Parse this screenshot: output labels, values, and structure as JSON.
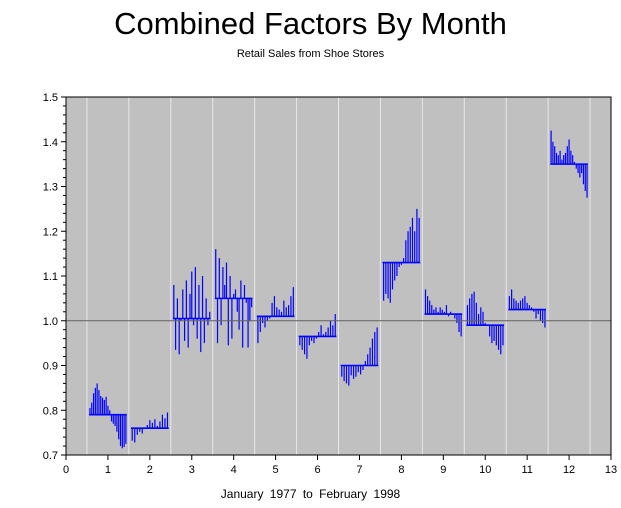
{
  "chart_data": {
    "type": "bar",
    "title": "Combined Factors By Month",
    "subtitle": "Retail Sales from Shoe Stores",
    "xlabel": "January 1977  to  February 1998",
    "ylabel": "",
    "xlim": [
      0,
      13
    ],
    "ylim": [
      0.7,
      1.5
    ],
    "x_ticks": [
      "0",
      "1",
      "2",
      "3",
      "4",
      "5",
      "6",
      "7",
      "8",
      "9",
      "10",
      "11",
      "12",
      "13"
    ],
    "y_ticks": [
      "0.7",
      "0.8",
      "0.9",
      "1.0",
      "1.1",
      "1.2",
      "1.3",
      "1.4",
      "1.5"
    ],
    "reference_line": 1.0,
    "grid": "vertical",
    "colors": {
      "plot_background": "#c0c0c0",
      "bars": "#0000ff",
      "grid": "#e8e8e8",
      "reference": "#606060"
    },
    "series": [
      {
        "month": 1,
        "mean": 0.79,
        "values": [
          0.805,
          0.817,
          0.838,
          0.85,
          0.86,
          0.845,
          0.832,
          0.828,
          0.823,
          0.83,
          0.81,
          0.8,
          0.775,
          0.77,
          0.765,
          0.752,
          0.735,
          0.72,
          0.715,
          0.718,
          0.725
        ]
      },
      {
        "month": 2,
        "mean": 0.76,
        "values": [
          0.732,
          0.728,
          0.745,
          0.752,
          0.748,
          0.76,
          0.767,
          0.778,
          0.772,
          0.78,
          0.765,
          0.775,
          0.79,
          0.782,
          0.795
        ]
      },
      {
        "month": 3,
        "mean": 1.005,
        "values": [
          1.08,
          0.935,
          1.05,
          0.925,
          1.0,
          1.07,
          0.955,
          1.09,
          0.94,
          1.06,
          1.11,
          0.99,
          1.12,
          0.96,
          1.08,
          0.93,
          1.1,
          0.95,
          1.05,
          0.99,
          1.02
        ]
      },
      {
        "month": 4,
        "mean": 1.05,
        "values": [
          1.16,
          0.95,
          1.14,
          0.99,
          1.12,
          1.08,
          1.13,
          0.945,
          1.1,
          0.96,
          1.06,
          1.07,
          1.02,
          0.98,
          1.09,
          0.94,
          1.08,
          1.04,
          0.94,
          1.0,
          1.03
        ]
      },
      {
        "month": 5,
        "mean": 1.01,
        "values": [
          0.95,
          0.975,
          0.995,
          0.985,
          1.0,
          1.005,
          1.04,
          1.055,
          1.03,
          1.025,
          1.02,
          1.045,
          1.03,
          1.035,
          1.055,
          1.075
        ]
      },
      {
        "month": 6,
        "mean": 0.965,
        "values": [
          0.945,
          0.935,
          0.925,
          0.915,
          0.945,
          0.955,
          0.95,
          0.96,
          0.975,
          0.99,
          0.97,
          0.975,
          0.985,
          1.0,
          0.99,
          1.015
        ]
      },
      {
        "month": 7,
        "mean": 0.9,
        "values": [
          0.875,
          0.865,
          0.86,
          0.855,
          0.878,
          0.87,
          0.875,
          0.885,
          0.88,
          0.89,
          0.91,
          0.925,
          0.94,
          0.96,
          0.975,
          0.985
        ]
      },
      {
        "month": 8,
        "mean": 1.13,
        "values": [
          1.045,
          1.06,
          1.05,
          1.04,
          1.07,
          1.09,
          1.1,
          1.12,
          1.125,
          1.14,
          1.18,
          1.2,
          1.21,
          1.23,
          1.2,
          1.25,
          1.23
        ]
      },
      {
        "month": 9,
        "mean": 1.015,
        "values": [
          1.07,
          1.055,
          1.045,
          1.035,
          1.025,
          1.03,
          1.02,
          1.03,
          1.025,
          1.02,
          1.035,
          1.01,
          1.02,
          1.015,
          1.005,
          0.995,
          0.975,
          0.965
        ]
      },
      {
        "month": 10,
        "mean": 0.99,
        "values": [
          1.035,
          1.05,
          1.06,
          1.065,
          1.04,
          1.015,
          1.03,
          1.02,
          0.995,
          0.99,
          0.965,
          0.95,
          0.955,
          0.945,
          0.935,
          0.925,
          0.945
        ]
      },
      {
        "month": 11,
        "mean": 1.025,
        "values": [
          1.055,
          1.07,
          1.05,
          1.045,
          1.04,
          1.045,
          1.05,
          1.055,
          1.04,
          1.035,
          1.03,
          1.02,
          1.005,
          1.015,
          1.0,
          0.995,
          0.985
        ]
      },
      {
        "month": 12,
        "mean": 1.35,
        "values": [
          1.425,
          1.4,
          1.39,
          1.375,
          1.37,
          1.38,
          1.36,
          1.37,
          1.375,
          1.39,
          1.405,
          1.38,
          1.37,
          1.355,
          1.34,
          1.33,
          1.32,
          1.33,
          1.305,
          1.29,
          1.275
        ]
      }
    ]
  }
}
